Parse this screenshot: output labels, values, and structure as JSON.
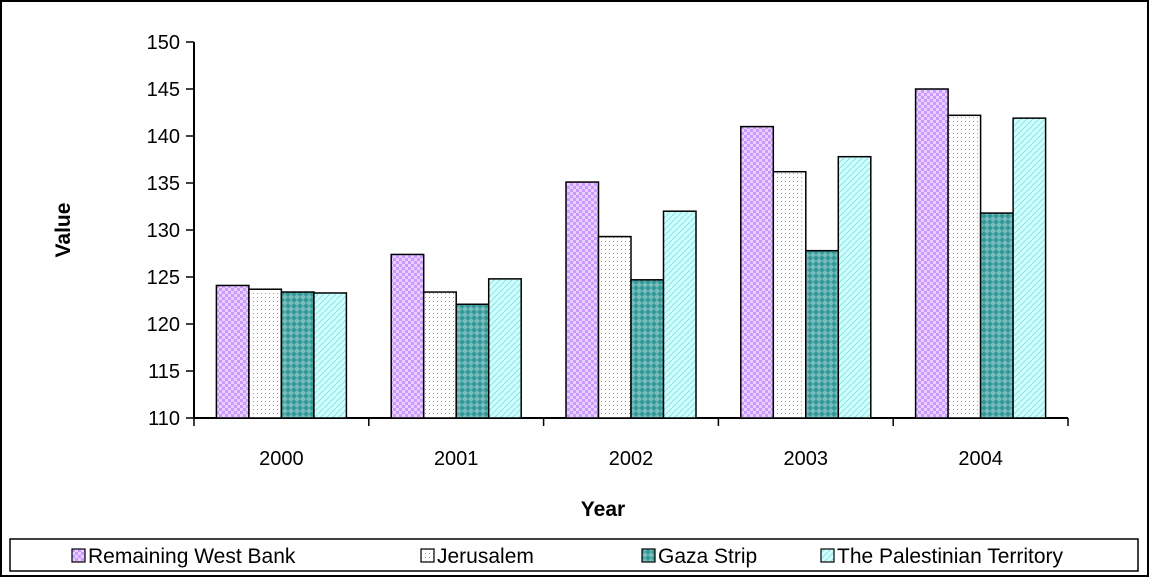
{
  "chart_data": {
    "type": "bar",
    "title": "",
    "xlabel": "Year",
    "ylabel": "Value",
    "ylim": [
      110,
      150
    ],
    "yticks": [
      110,
      115,
      120,
      125,
      130,
      135,
      140,
      145,
      150
    ],
    "categories": [
      "2000",
      "2001",
      "2002",
      "2003",
      "2004"
    ],
    "series": [
      {
        "name": "Remaining West Bank",
        "values": [
          124.1,
          127.4,
          135.1,
          141.0,
          145.0
        ],
        "color": "#cc99ff"
      },
      {
        "name": "Jerusalem",
        "values": [
          123.7,
          123.4,
          129.3,
          136.2,
          142.2
        ],
        "color": "#ffffff"
      },
      {
        "name": "Gaza Strip",
        "values": [
          123.4,
          122.1,
          124.7,
          127.8,
          131.8
        ],
        "color": "#339999"
      },
      {
        "name": "The Palestinian Territory",
        "values": [
          123.3,
          124.8,
          132.0,
          137.8,
          141.9
        ],
        "color": "#ccffff"
      }
    ],
    "grid": false,
    "legend_position": "bottom"
  }
}
